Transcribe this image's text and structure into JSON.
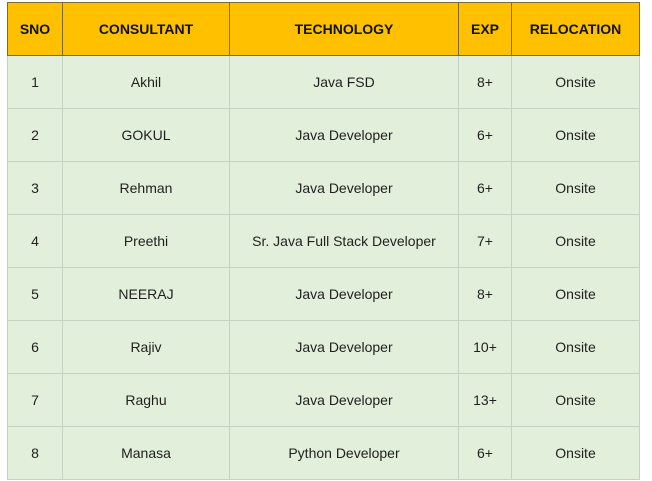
{
  "table": {
    "headers": [
      "SNO",
      "CONSULTANT",
      "TECHNOLOGY",
      "EXP",
      "RELOCATION"
    ],
    "rows": [
      [
        "1",
        "Akhil",
        "Java FSD",
        "8+",
        "Onsite"
      ],
      [
        "2",
        "GOKUL",
        "Java Developer",
        "6+",
        "Onsite"
      ],
      [
        "3",
        "Rehman",
        "Java Developer",
        "6+",
        "Onsite"
      ],
      [
        "4",
        "Preethi",
        "Sr. Java Full Stack Developer",
        "7+",
        "Onsite"
      ],
      [
        "5",
        "NEERAJ",
        "Java Developer",
        "8+",
        "Onsite"
      ],
      [
        "6",
        "Rajiv",
        "Java Developer",
        "10+",
        "Onsite"
      ],
      [
        "7",
        "Raghu",
        "Java Developer",
        "13+",
        "Onsite"
      ],
      [
        "8",
        "Manasa",
        "Python Developer",
        "6+",
        "Onsite"
      ]
    ]
  },
  "colors": {
    "header_bg": "#ffc000",
    "row_bg": "#e2efda",
    "border": "#c6d3c2"
  }
}
